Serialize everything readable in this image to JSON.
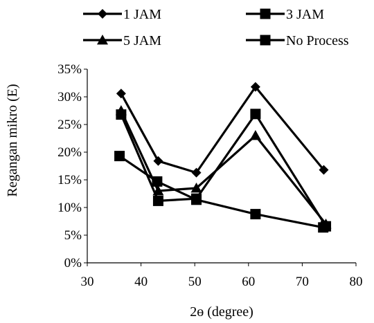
{
  "chart_data": {
    "type": "line",
    "xlabel": "2ɵ (degree)",
    "ylabel": "Regangan mikro (E)",
    "xlim": [
      30,
      80
    ],
    "ylim": [
      0,
      0.35
    ],
    "x_ticks": [
      30,
      40,
      50,
      60,
      70,
      80
    ],
    "y_ticks": [
      0,
      0.05,
      0.1,
      0.15,
      0.2,
      0.25,
      0.3,
      0.35
    ],
    "x_tick_labels": [
      "30",
      "40",
      "50",
      "60",
      "70",
      "80"
    ],
    "y_tick_labels": [
      "0%",
      "5%",
      "10%",
      "15%",
      "20%",
      "25%",
      "30%",
      "35%"
    ],
    "grid": false,
    "legend_position": "top",
    "series": [
      {
        "name": "1 JAM",
        "marker": "diamond",
        "color": "#000000",
        "x": [
          36.3,
          43.2,
          50.3,
          61.3,
          74.0
        ],
        "y": [
          0.306,
          0.184,
          0.163,
          0.318,
          0.168
        ]
      },
      {
        "name": "3 JAM",
        "marker": "square",
        "color": "#000000",
        "x": [
          36.3,
          43.2,
          50.3,
          61.3,
          74.4
        ],
        "y": [
          0.268,
          0.112,
          0.116,
          0.269,
          0.066
        ]
      },
      {
        "name": "5 JAM",
        "marker": "triangle",
        "color": "#000000",
        "x": [
          36.3,
          43.2,
          50.3,
          61.3,
          74.4
        ],
        "y": [
          0.275,
          0.13,
          0.135,
          0.23,
          0.07
        ]
      },
      {
        "name": "No Process",
        "marker": "square",
        "color": "#000000",
        "x": [
          36.0,
          43.0,
          50.3,
          61.3,
          73.9
        ],
        "y": [
          0.193,
          0.147,
          0.114,
          0.088,
          0.064
        ]
      }
    ]
  }
}
